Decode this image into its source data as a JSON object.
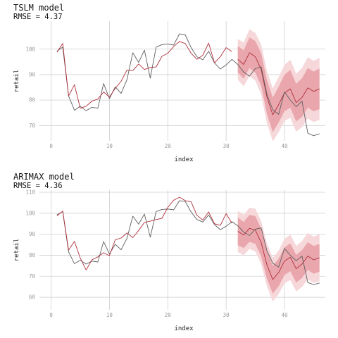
{
  "colors": {
    "actual": "#5f5f5f",
    "fitted": "#b0303c",
    "band80": "#e9a7ad",
    "band95": "#f6d7da",
    "grid": "#cfcfcf",
    "tick": "#9a9a9a"
  },
  "chart_data": [
    {
      "type": "line",
      "title": "TSLM model",
      "subtitle": "RMSE = 4.37",
      "xlabel": "index",
      "ylabel": "retail",
      "xlim": [
        -2,
        47
      ],
      "ylim": [
        64,
        111
      ],
      "xticks": [
        0,
        10,
        20,
        30,
        40
      ],
      "yticks": [
        70,
        80,
        90,
        100
      ],
      "grid": true,
      "series": [
        {
          "role": "actual",
          "x": [
            1,
            2,
            3,
            4,
            5,
            6,
            7,
            8,
            9,
            10,
            11,
            12,
            13,
            14,
            15,
            16,
            17,
            18,
            19,
            20,
            21,
            22,
            23,
            24,
            25,
            26,
            27,
            28,
            29,
            30,
            31,
            32,
            33,
            34,
            35,
            36,
            37,
            38,
            39,
            40,
            41,
            42,
            43,
            44,
            45,
            46
          ],
          "values": [
            99.2,
            100.8,
            81.6,
            76.0,
            77.6,
            75.8,
            77.2,
            76.8,
            86.5,
            80.6,
            85.2,
            82.6,
            88.0,
            98.6,
            94.8,
            99.6,
            88.6,
            100.8,
            101.8,
            102.0,
            101.6,
            106.0,
            105.6,
            100.6,
            97.0,
            95.8,
            99.2,
            94.6,
            92.2,
            93.8,
            96.0,
            94.0,
            91.0,
            89.4,
            92.4,
            93.0,
            82.2,
            76.2,
            74.4,
            83.2,
            80.0,
            77.4,
            79.6,
            67.0,
            66.0,
            66.8
          ]
        },
        {
          "role": "fitted",
          "x": [
            1,
            2,
            3,
            4,
            5,
            6,
            7,
            8,
            9,
            10,
            11,
            12,
            13,
            14,
            15,
            16,
            17,
            18,
            19,
            20,
            21,
            22,
            23,
            24,
            25,
            26,
            27,
            28,
            29,
            30,
            31
          ],
          "values": [
            98.8,
            102.2,
            81.6,
            86.0,
            76.8,
            77.6,
            79.6,
            80.4,
            83.2,
            81.2,
            84.6,
            87.4,
            91.8,
            91.6,
            94.2,
            92.0,
            92.8,
            93.0,
            97.2,
            98.4,
            101.0,
            103.0,
            102.2,
            98.4,
            96.0,
            97.6,
            102.4,
            94.6,
            97.0,
            100.6,
            99.0
          ]
        },
        {
          "role": "forecast",
          "x": [
            32,
            33,
            34,
            35,
            36,
            37,
            38,
            39,
            40,
            41,
            42,
            43,
            44,
            45,
            46
          ],
          "mean": [
            96.0,
            94.0,
            98.6,
            97.0,
            92.0,
            81.2,
            74.2,
            78.2,
            82.8,
            84.4,
            79.0,
            81.0,
            84.8,
            83.4,
            84.4
          ],
          "lo80": [
            90.8,
            88.4,
            92.6,
            90.8,
            85.6,
            74.6,
            67.4,
            71.2,
            75.6,
            77.0,
            71.6,
            73.4,
            77.0,
            75.6,
            76.4
          ],
          "hi80": [
            101.2,
            99.6,
            104.6,
            103.2,
            98.4,
            87.8,
            81.0,
            85.2,
            90.0,
            91.8,
            86.4,
            88.6,
            92.6,
            91.2,
            92.4
          ],
          "lo95": [
            88.0,
            85.4,
            89.4,
            87.6,
            82.2,
            71.0,
            63.8,
            67.4,
            71.8,
            73.0,
            67.6,
            69.4,
            72.8,
            71.4,
            72.2
          ],
          "hi95": [
            104.0,
            102.6,
            107.8,
            106.4,
            101.8,
            91.4,
            84.6,
            89.0,
            93.8,
            95.8,
            90.4,
            92.6,
            96.8,
            95.4,
            96.6
          ]
        }
      ]
    },
    {
      "type": "line",
      "title": "ARIMAX model",
      "subtitle": "RMSE = 4.36",
      "xlabel": "index",
      "ylabel": "retail",
      "xlim": [
        -2,
        47
      ],
      "ylim": [
        54,
        111
      ],
      "xticks": [
        0,
        10,
        20,
        30,
        40
      ],
      "yticks": [
        60,
        70,
        80,
        90,
        100,
        110
      ],
      "grid": true,
      "series": [
        {
          "role": "actual",
          "x": [
            1,
            2,
            3,
            4,
            5,
            6,
            7,
            8,
            9,
            10,
            11,
            12,
            13,
            14,
            15,
            16,
            17,
            18,
            19,
            20,
            21,
            22,
            23,
            24,
            25,
            26,
            27,
            28,
            29,
            30,
            31,
            32,
            33,
            34,
            35,
            36,
            37,
            38,
            39,
            40,
            41,
            42,
            43,
            44,
            45,
            46
          ],
          "values": [
            99.2,
            100.8,
            81.6,
            76.0,
            77.6,
            75.8,
            77.2,
            76.8,
            86.5,
            80.6,
            85.2,
            82.6,
            88.0,
            98.6,
            94.8,
            99.6,
            88.6,
            100.8,
            101.8,
            102.0,
            101.6,
            106.0,
            105.6,
            100.6,
            97.0,
            95.8,
            99.2,
            94.6,
            92.2,
            93.8,
            96.0,
            94.0,
            91.0,
            89.4,
            92.4,
            93.0,
            82.2,
            76.2,
            74.4,
            83.2,
            80.0,
            77.4,
            79.6,
            67.0,
            66.0,
            66.8
          ]
        },
        {
          "role": "fitted",
          "x": [
            1,
            2,
            3,
            4,
            5,
            6,
            7,
            8,
            9,
            10,
            11,
            12,
            13,
            14,
            15,
            16,
            17,
            18,
            19,
            20,
            21,
            22,
            23,
            24,
            25,
            26,
            27,
            28,
            29,
            30,
            31
          ],
          "values": [
            98.8,
            101.0,
            82.4,
            86.6,
            78.6,
            73.0,
            77.8,
            79.2,
            81.2,
            79.8,
            87.4,
            88.2,
            90.6,
            88.4,
            91.8,
            95.6,
            96.2,
            97.0,
            97.6,
            102.8,
            106.2,
            107.6,
            106.0,
            105.4,
            99.0,
            96.8,
            100.6,
            95.0,
            94.2,
            99.8,
            95.2
          ]
        },
        {
          "role": "forecast",
          "x": [
            32,
            33,
            34,
            35,
            36,
            37,
            38,
            39,
            40,
            41,
            42,
            43,
            44,
            45,
            46
          ],
          "mean": [
            91.4,
            89.6,
            92.8,
            92.0,
            86.0,
            75.4,
            68.4,
            71.8,
            77.2,
            79.0,
            73.6,
            75.8,
            79.6,
            77.8,
            78.8
          ],
          "lo80": [
            84.8,
            83.4,
            86.4,
            85.4,
            79.4,
            68.8,
            61.8,
            65.2,
            70.6,
            72.4,
            67.0,
            69.2,
            73.0,
            71.2,
            72.2
          ],
          "hi80": [
            98.0,
            95.8,
            99.2,
            98.6,
            92.6,
            82.0,
            75.0,
            78.4,
            83.8,
            85.6,
            80.2,
            82.4,
            86.2,
            84.4,
            85.4
          ],
          "lo95": [
            81.6,
            80.0,
            83.0,
            81.8,
            75.8,
            65.2,
            58.0,
            61.4,
            66.6,
            68.2,
            62.8,
            64.8,
            68.6,
            66.8,
            67.6
          ],
          "hi95": [
            101.2,
            99.2,
            102.6,
            102.2,
            96.2,
            85.6,
            78.8,
            82.2,
            87.8,
            89.8,
            84.4,
            86.8,
            90.6,
            88.8,
            90.0
          ]
        }
      ]
    }
  ]
}
